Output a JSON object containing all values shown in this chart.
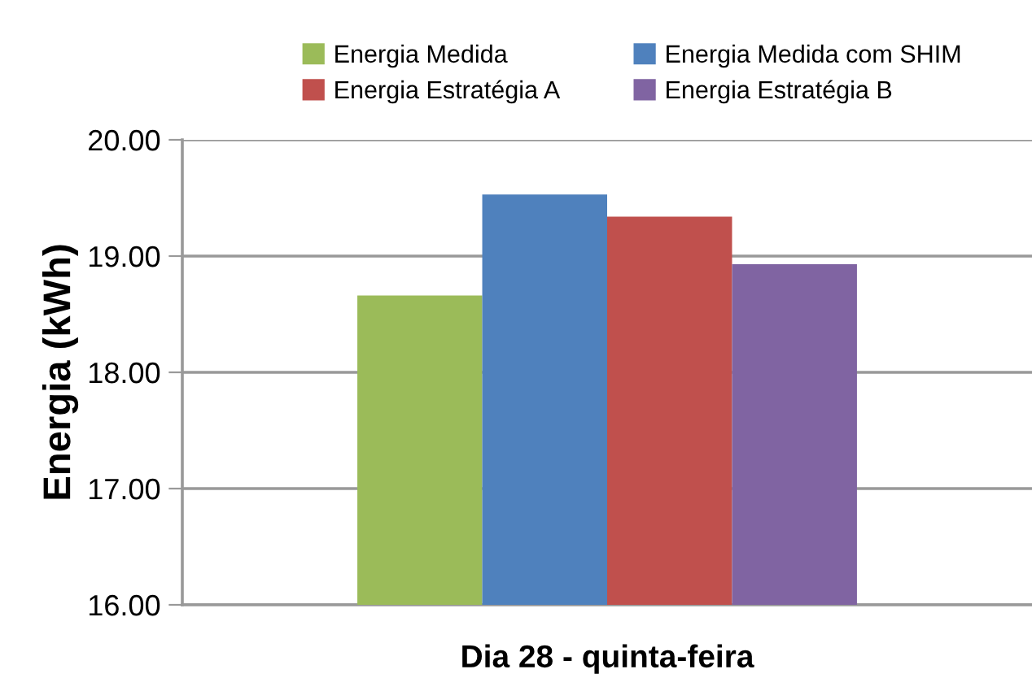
{
  "chart_data": {
    "type": "bar",
    "xlabel": "Dia 28 - quinta-feira",
    "ylabel": "Energia (kWh)",
    "categories": [
      null
    ],
    "series": [
      {
        "name": "Energia Medida",
        "color": "#9bbb59",
        "values": [
          18.66
        ]
      },
      {
        "name": "Energia Medida com SHIM",
        "color": "#4f81bd",
        "values": [
          19.53
        ]
      },
      {
        "name": "Energia Estratégia A",
        "color": "#c0504d",
        "values": [
          19.34
        ]
      },
      {
        "name": "Energia Estratégia B",
        "color": "#8064a2",
        "values": [
          18.93
        ]
      }
    ],
    "ylim": [
      16,
      20
    ],
    "yticks": [
      {
        "value": 16,
        "label": "16.00"
      },
      {
        "value": 17,
        "label": "17.00"
      },
      {
        "value": 18,
        "label": "18.00"
      },
      {
        "value": 19,
        "label": "19.00"
      },
      {
        "value": 20,
        "label": "20.00"
      }
    ],
    "grid": "y",
    "legend": "top"
  }
}
